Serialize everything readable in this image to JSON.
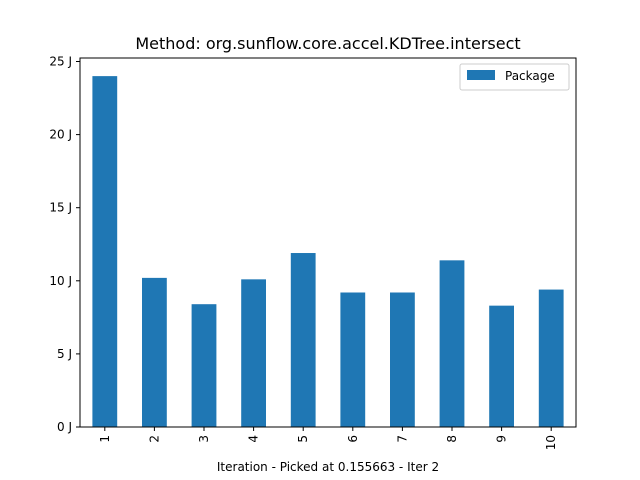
{
  "chart_data": {
    "type": "bar",
    "title": "Method: org.sunflow.core.accel.KDTree.intersect",
    "xlabel": "Iteration - Picked at 0.155663 - Iter 2",
    "ylabel": "",
    "categories": [
      "1",
      "2",
      "3",
      "4",
      "5",
      "6",
      "7",
      "8",
      "9",
      "10"
    ],
    "series": [
      {
        "name": "Package",
        "color": "#1f77b4",
        "values": [
          24.0,
          10.2,
          8.4,
          10.1,
          11.9,
          9.2,
          9.2,
          11.4,
          8.3,
          9.4
        ]
      }
    ],
    "y_ticks": [
      "0 J",
      "5 J",
      "10 J",
      "15 J",
      "20 J",
      "25 J"
    ],
    "ylim": [
      0,
      25
    ],
    "grid": false,
    "legend_position": "top-right"
  }
}
